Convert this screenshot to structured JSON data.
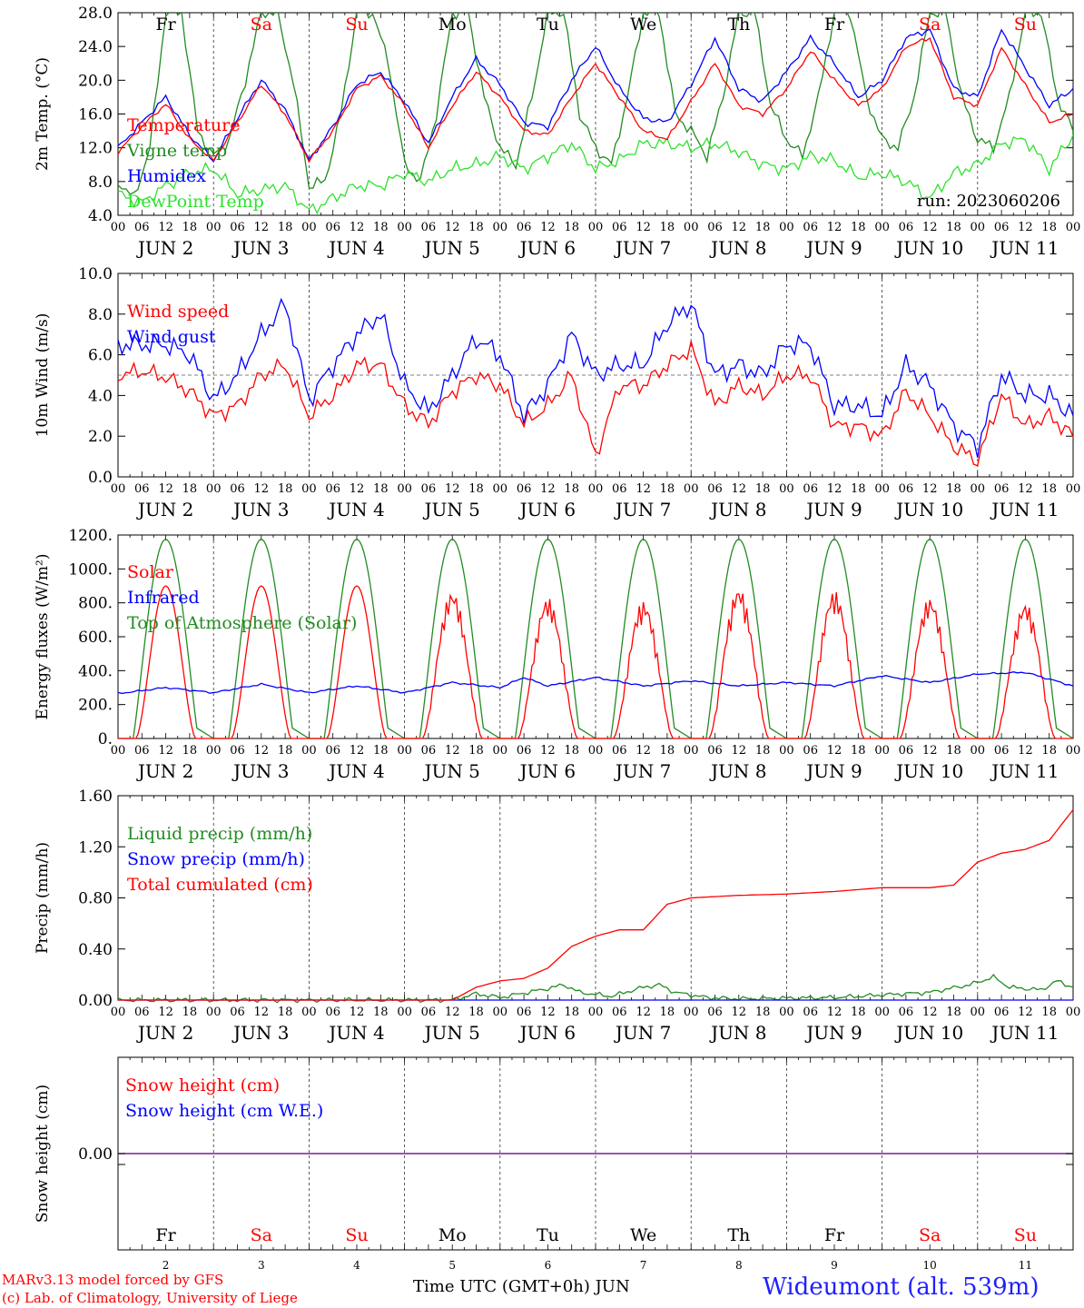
{
  "colors": {
    "red": "#ff0000",
    "green": "#228b22",
    "blue": "#0000ff",
    "light_green": "#2ee22e",
    "gray": "#555555",
    "purple": "#7a1f9a"
  },
  "footer": {
    "model": "MARv3.13 model forced by GFS",
    "lab": "(c) Lab. of Climatology, University of Liege",
    "axis_title": "Time UTC (GMT+0h) JUN",
    "station": "Wideumont (alt. 539m)"
  },
  "chart_data": [
    {
      "type": "line",
      "ylabel": "2m Temp. (°C)",
      "ylim": [
        4,
        28
      ],
      "yticks": [
        "4.0",
        "8.0",
        "12.0",
        "16.0",
        "20.0",
        "24.0",
        "28.0"
      ],
      "run_label": "run: 2023060206",
      "day_labels": [
        "Fr",
        "Sa",
        "Su",
        "Mo",
        "Tu",
        "We",
        "Th",
        "Fr",
        "Sa",
        "Su"
      ],
      "weekend_days": [
        "Sa",
        "Su"
      ],
      "x_hours": [
        "00",
        "06",
        "12",
        "18"
      ],
      "x_dates": [
        "JUN 2",
        "JUN 3",
        "JUN 4",
        "JUN 5",
        "JUN 6",
        "JUN 7",
        "JUN 8",
        "JUN 9",
        "JUN 10",
        "JUN 11"
      ],
      "x_unit": "hours since 2023-06-02 00 UTC",
      "series": [
        {
          "name": "Temperature",
          "color": "#ff0000",
          "x": [
            0,
            6,
            12,
            18,
            24,
            30,
            36,
            42,
            48,
            54,
            60,
            66,
            72,
            78,
            84,
            90,
            96,
            102,
            108,
            114,
            120,
            126,
            132,
            138,
            144,
            150,
            156,
            162,
            168,
            174,
            180,
            186,
            192,
            198,
            204,
            210,
            216,
            222,
            234,
            240
          ],
          "y": [
            11.5,
            14.5,
            17.2,
            13,
            10.5,
            15,
            19.5,
            16,
            10.5,
            14,
            19,
            20.5,
            17,
            12,
            17,
            21,
            18,
            14,
            13.5,
            18,
            22,
            18,
            14,
            13,
            17.5,
            22,
            17,
            16,
            19,
            23.5,
            20,
            17,
            19,
            24,
            25,
            18,
            17,
            23.8,
            15,
            16
          ]
        },
        {
          "name": "Vigne temp",
          "color": "#228b22",
          "x": [
            0,
            4,
            8,
            12,
            16,
            20,
            24,
            28,
            32,
            36,
            40,
            44,
            48,
            52,
            56,
            60,
            64,
            68,
            72,
            76,
            80,
            84,
            88,
            92,
            96,
            100,
            104,
            108,
            112,
            116,
            120,
            124,
            128,
            132,
            136,
            140,
            144,
            148,
            152,
            156,
            160,
            164,
            168,
            172,
            176,
            180,
            184,
            188,
            192,
            196,
            200,
            204,
            208,
            212,
            216,
            220,
            224,
            228,
            232,
            236,
            240
          ],
          "y": [
            8,
            6,
            12,
            28,
            28,
            14,
            11,
            13,
            20,
            28,
            28,
            20,
            7.5,
            8,
            16,
            28,
            28,
            22,
            10,
            8,
            16,
            28,
            28,
            18,
            12,
            10,
            18,
            28,
            28,
            16,
            12,
            10,
            18,
            28,
            28,
            16,
            14,
            11,
            18,
            28,
            28,
            17,
            13,
            11,
            18,
            28,
            28,
            18,
            13,
            12,
            18,
            28,
            28,
            18,
            13,
            12,
            18,
            28,
            28,
            18,
            14
          ]
        },
        {
          "name": "Humidex",
          "color": "#0000ff",
          "x": [
            0,
            6,
            12,
            18,
            24,
            30,
            36,
            42,
            48,
            54,
            60,
            66,
            72,
            78,
            84,
            90,
            96,
            102,
            108,
            114,
            120,
            126,
            132,
            138,
            144,
            150,
            156,
            162,
            168,
            174,
            180,
            186,
            192,
            198,
            204,
            210,
            216,
            222,
            234,
            240
          ],
          "y": [
            12,
            15,
            18,
            13.5,
            10.5,
            15.5,
            20,
            16.5,
            10.5,
            14.5,
            19.5,
            21,
            17.5,
            12.5,
            18,
            22.5,
            19.5,
            15,
            14.5,
            20,
            24,
            19,
            15.5,
            15,
            19.5,
            25,
            19,
            17.5,
            21,
            25,
            22,
            18,
            20,
            25,
            26,
            19,
            18,
            26,
            17,
            19
          ]
        },
        {
          "name": "DewPoint Temp",
          "color": "#2ee22e",
          "x": [
            0,
            6,
            12,
            18,
            24,
            30,
            36,
            42,
            48,
            54,
            60,
            66,
            72,
            78,
            84,
            90,
            96,
            102,
            108,
            114,
            120,
            126,
            132,
            138,
            144,
            150,
            156,
            162,
            168,
            174,
            180,
            186,
            192,
            198,
            204,
            210,
            216,
            222,
            228,
            234,
            240
          ],
          "y": [
            6.5,
            5.5,
            7.5,
            9,
            9.5,
            6.5,
            7,
            7.5,
            4.5,
            6,
            7.5,
            7.5,
            9,
            8,
            9.5,
            10,
            11,
            9.5,
            11,
            12.5,
            9.5,
            10.5,
            12.5,
            12.5,
            12,
            12.5,
            11.5,
            10,
            9.5,
            11,
            10.5,
            8.5,
            9,
            8,
            6,
            9,
            10,
            12.5,
            13,
            9.5,
            13.5
          ]
        }
      ]
    },
    {
      "type": "line",
      "ylabel": "10m Wind (m/s)",
      "ylim": [
        0,
        10
      ],
      "yticks": [
        "0.0",
        "2.0",
        "4.0",
        "6.0",
        "8.0",
        "10.0"
      ],
      "reference_line": 5,
      "x_hours": [
        "00",
        "06",
        "12",
        "18"
      ],
      "x_dates": [
        "JUN 2",
        "JUN 3",
        "JUN 4",
        "JUN 5",
        "JUN 6",
        "JUN 7",
        "JUN 8",
        "JUN 9",
        "JUN 10",
        "JUN 11"
      ],
      "series": [
        {
          "name": "Wind speed",
          "color": "#ff0000",
          "x": [
            0,
            6,
            12,
            18,
            24,
            30,
            36,
            42,
            48,
            54,
            60,
            66,
            72,
            78,
            84,
            90,
            96,
            102,
            108,
            114,
            120,
            126,
            132,
            138,
            144,
            150,
            156,
            162,
            168,
            174,
            180,
            186,
            192,
            198,
            204,
            210,
            216,
            222,
            228,
            234,
            240
          ],
          "y": [
            5,
            5.2,
            4.9,
            4.2,
            3,
            3.5,
            5,
            5.5,
            3,
            4,
            5.5,
            5.5,
            3.5,
            2.6,
            4.2,
            5,
            4.5,
            2.6,
            3.5,
            5,
            1,
            4.5,
            4.5,
            5.5,
            6.3,
            3.5,
            4.5,
            4,
            5,
            5,
            2.5,
            2.5,
            2,
            4.2,
            3,
            1.5,
            0.8,
            4,
            2.5,
            3,
            2
          ]
        },
        {
          "name": "Wind gust",
          "color": "#0000ff",
          "x": [
            0,
            6,
            12,
            18,
            24,
            30,
            36,
            42,
            48,
            54,
            60,
            66,
            72,
            78,
            84,
            90,
            96,
            102,
            108,
            114,
            120,
            126,
            132,
            138,
            144,
            150,
            156,
            162,
            168,
            174,
            180,
            186,
            192,
            198,
            204,
            210,
            216,
            222,
            228,
            234,
            240
          ],
          "y": [
            6.5,
            6.5,
            6.5,
            6,
            3.8,
            5,
            7,
            8.5,
            3.8,
            5.5,
            7,
            8,
            4.5,
            3.2,
            5,
            6.8,
            6,
            3,
            4.5,
            7,
            5,
            5.5,
            5.5,
            7.5,
            8.5,
            5,
            5.5,
            5,
            6.5,
            6.5,
            3.5,
            3.5,
            3,
            5.5,
            4.5,
            2.5,
            1.5,
            5,
            4,
            4,
            3
          ]
        }
      ]
    },
    {
      "type": "line",
      "ylabel": "Energy fluxes (W/m²)",
      "ylim": [
        0,
        1200
      ],
      "yticks": [
        "0.",
        "200.",
        "400.",
        "600.",
        "800.",
        "1000.",
        "1200."
      ],
      "x_hours": [
        "00",
        "06",
        "12",
        "18"
      ],
      "x_dates": [
        "JUN 2",
        "JUN 3",
        "JUN 4",
        "JUN 5",
        "JUN 6",
        "JUN 7",
        "JUN 8",
        "JUN 9",
        "JUN 10",
        "JUN 11"
      ],
      "series": [
        {
          "name": "Solar",
          "color": "#ff0000",
          "daily_peak": [
            900,
            900,
            900,
            870,
            830,
            810,
            890,
            870,
            830,
            800
          ]
        },
        {
          "name": "Infrared",
          "color": "#0000ff",
          "x": [
            0,
            12,
            24,
            36,
            48,
            60,
            72,
            84,
            96,
            102,
            108,
            120,
            132,
            144,
            156,
            168,
            180,
            192,
            204,
            216,
            228,
            240
          ],
          "y": [
            265,
            300,
            270,
            320,
            270,
            310,
            270,
            330,
            300,
            360,
            310,
            360,
            310,
            340,
            310,
            330,
            310,
            370,
            330,
            380,
            390,
            310
          ]
        },
        {
          "name": "Top of Atmosphere (Solar)",
          "color": "#228b22",
          "daily_peak": [
            1175,
            1175,
            1175,
            1175,
            1175,
            1175,
            1175,
            1175,
            1175,
            1175
          ]
        }
      ]
    },
    {
      "type": "line",
      "ylabel": "Precip (mm/h)",
      "ylim": [
        0,
        1.6
      ],
      "yticks": [
        "0.00",
        "0.40",
        "0.80",
        "1.20",
        "1.60"
      ],
      "x_hours": [
        "00",
        "06",
        "12",
        "18"
      ],
      "x_dates": [
        "JUN 2",
        "JUN 3",
        "JUN 4",
        "JUN 5",
        "JUN 6",
        "JUN 7",
        "JUN 8",
        "JUN 9",
        "JUN 10",
        "JUN 11"
      ],
      "series": [
        {
          "name": "Liquid precip (mm/h)",
          "color": "#228b22",
          "x": [
            0,
            84,
            90,
            96,
            108,
            112,
            116,
            124,
            132,
            136,
            140,
            148,
            156,
            180,
            198,
            204,
            214,
            220,
            224,
            232,
            236,
            240
          ],
          "y": [
            0,
            0,
            0.05,
            0.02,
            0.09,
            0.12,
            0.06,
            0.03,
            0.1,
            0.12,
            0.06,
            0.02,
            0.01,
            0.02,
            0.05,
            0.06,
            0.12,
            0.18,
            0.1,
            0.08,
            0.15,
            0.1
          ]
        },
        {
          "name": "Snow precip (mm/h)",
          "color": "#0000ff",
          "x": [
            0,
            240
          ],
          "y": [
            0,
            0
          ]
        },
        {
          "name": "Total cumulated (cm)",
          "color": "#ff0000",
          "x": [
            0,
            84,
            90,
            96,
            102,
            108,
            114,
            120,
            126,
            132,
            138,
            144,
            156,
            168,
            180,
            192,
            204,
            210,
            216,
            222,
            228,
            234,
            240
          ],
          "y": [
            0,
            0,
            0.1,
            0.15,
            0.17,
            0.25,
            0.42,
            0.5,
            0.55,
            0.55,
            0.75,
            0.8,
            0.82,
            0.83,
            0.85,
            0.88,
            0.88,
            0.9,
            1.08,
            1.15,
            1.18,
            1.25,
            1.49
          ]
        }
      ]
    },
    {
      "type": "line",
      "ylabel": "Snow height (cm)",
      "yticks": [
        "0.00"
      ],
      "x_dates": [
        "2",
        "3",
        "4",
        "5",
        "6",
        "7",
        "8",
        "9",
        "10",
        "11"
      ],
      "day_labels": [
        "Fr",
        "Sa",
        "Su",
        "Mo",
        "Tu",
        "We",
        "Th",
        "Fr",
        "Sa",
        "Su"
      ],
      "series": [
        {
          "name": "Snow height (cm)",
          "color": "#ff0000",
          "x": [
            0,
            240
          ],
          "y": [
            0,
            0
          ]
        },
        {
          "name": "Snow height (cm W.E.)",
          "color": "#0000ff",
          "x": [
            0,
            240
          ],
          "y": [
            0,
            0
          ]
        }
      ]
    }
  ]
}
